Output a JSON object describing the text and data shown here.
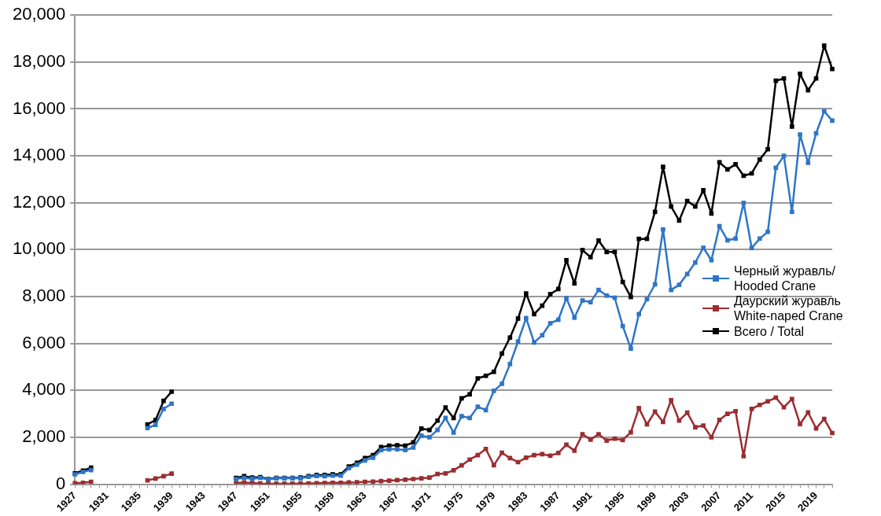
{
  "chart_data": {
    "type": "line",
    "categories": [
      "1927",
      null,
      null,
      null,
      "1931",
      null,
      null,
      null,
      "1935",
      null,
      null,
      null,
      "1939",
      null,
      null,
      null,
      "1943",
      null,
      null,
      null,
      "1947",
      null,
      null,
      null,
      "1951",
      null,
      null,
      null,
      "1955",
      null,
      null,
      null,
      "1959",
      null,
      null,
      null,
      "1963",
      null,
      null,
      null,
      "1967",
      null,
      null,
      null,
      "1971",
      null,
      null,
      null,
      "1975",
      null,
      null,
      null,
      "1979",
      null,
      null,
      null,
      "1983",
      null,
      null,
      null,
      "1987",
      null,
      null,
      null,
      "1991",
      null,
      null,
      null,
      "1995",
      null,
      null,
      null,
      "1999",
      null,
      null,
      null,
      "2003",
      null,
      null,
      null,
      "2007",
      null,
      null,
      null,
      "2011",
      null,
      null,
      null,
      "2015",
      null,
      null,
      null,
      "2019",
      null,
      null
    ],
    "series": [
      {
        "name": "Черный журавль/ Hooded Crane",
        "color": "#2e75c8",
        "values": [
          420,
          520,
          600,
          null,
          null,
          null,
          null,
          null,
          null,
          2390,
          2530,
          3210,
          3430,
          null,
          null,
          null,
          null,
          null,
          null,
          null,
          220,
          270,
          230,
          270,
          200,
          250,
          250,
          250,
          250,
          310,
          350,
          340,
          360,
          360,
          680,
          830,
          1010,
          1130,
          1450,
          1490,
          1490,
          1450,
          1560,
          2070,
          2000,
          2310,
          2820,
          2200,
          2900,
          2820,
          3300,
          3160,
          3980,
          4280,
          5120,
          6080,
          7080,
          6040,
          6350,
          6860,
          7010,
          7930,
          7100,
          7830,
          7760,
          8280,
          8040,
          7950,
          6740,
          5780,
          7250,
          7890,
          8520,
          10860,
          8280,
          8500,
          8960,
          9450,
          10080,
          9550,
          11000,
          10400,
          10470,
          11990,
          10070,
          10470,
          10760,
          13490,
          14000,
          11610,
          14910,
          13700,
          14960,
          15900,
          15500
        ]
      },
      {
        "name": "Даурский журавль White-naped Crane",
        "color": "#9b2d30",
        "values": [
          40,
          60,
          100,
          null,
          null,
          null,
          null,
          null,
          null,
          160,
          240,
          340,
          450,
          null,
          null,
          null,
          null,
          null,
          null,
          null,
          50,
          70,
          50,
          30,
          20,
          20,
          20,
          20,
          30,
          30,
          40,
          50,
          60,
          60,
          70,
          80,
          100,
          110,
          130,
          150,
          170,
          190,
          220,
          250,
          280,
          430,
          460,
          590,
          800,
          1050,
          1240,
          1500,
          810,
          1340,
          1110,
          940,
          1130,
          1240,
          1280,
          1210,
          1330,
          1680,
          1430,
          2130,
          1900,
          2130,
          1860,
          1940,
          1880,
          2210,
          3240,
          2550,
          3090,
          2650,
          3580,
          2710,
          3050,
          2430,
          2500,
          2000,
          2740,
          3000,
          3110,
          1190,
          3210,
          3380,
          3530,
          3690,
          3280,
          3630,
          2560,
          3060,
          2380,
          2780,
          2180
        ]
      },
      {
        "name": "Всего / Total",
        "color": "#000000",
        "values": [
          460,
          580,
          700,
          null,
          null,
          null,
          null,
          null,
          null,
          2550,
          2730,
          3550,
          3940,
          null,
          null,
          null,
          null,
          null,
          null,
          null,
          270,
          340,
          280,
          300,
          220,
          270,
          270,
          270,
          280,
          340,
          390,
          390,
          420,
          420,
          750,
          910,
          1110,
          1240,
          1580,
          1640,
          1660,
          1640,
          1780,
          2370,
          2310,
          2710,
          3270,
          2820,
          3660,
          3830,
          4510,
          4620,
          4790,
          5570,
          6250,
          7060,
          8130,
          7250,
          7610,
          8100,
          8320,
          9550,
          8560,
          9980,
          9680,
          10390,
          9900,
          9900,
          8620,
          7980,
          10460,
          10460,
          11610,
          13530,
          11840,
          11240,
          12070,
          11840,
          12530,
          11540,
          13720,
          13420,
          13640,
          13150,
          13250,
          13840,
          14280,
          17200,
          17300,
          15250,
          17500,
          16800,
          17300,
          18700,
          17700
        ]
      }
    ],
    "ylim": [
      0,
      20000
    ],
    "yticks": [
      0,
      {
        "value": 2000,
        "label": "2,000"
      },
      {
        "value": 4000,
        "label": "4,000"
      },
      {
        "value": 6000,
        "label": "6,000"
      },
      {
        "value": 8000,
        "label": "8,000"
      },
      {
        "value": 10000,
        "label": "10,000"
      },
      {
        "value": 12000,
        "label": "12,000"
      },
      {
        "value": 14000,
        "label": "14,000"
      },
      {
        "value": 16000,
        "label": "16,000"
      },
      {
        "value": 18000,
        "label": "18,000"
      },
      {
        "value": 20000,
        "label": "20,000"
      }
    ],
    "grid": "y",
    "legend": "right",
    "marker": "square",
    "line_style": "solid"
  }
}
